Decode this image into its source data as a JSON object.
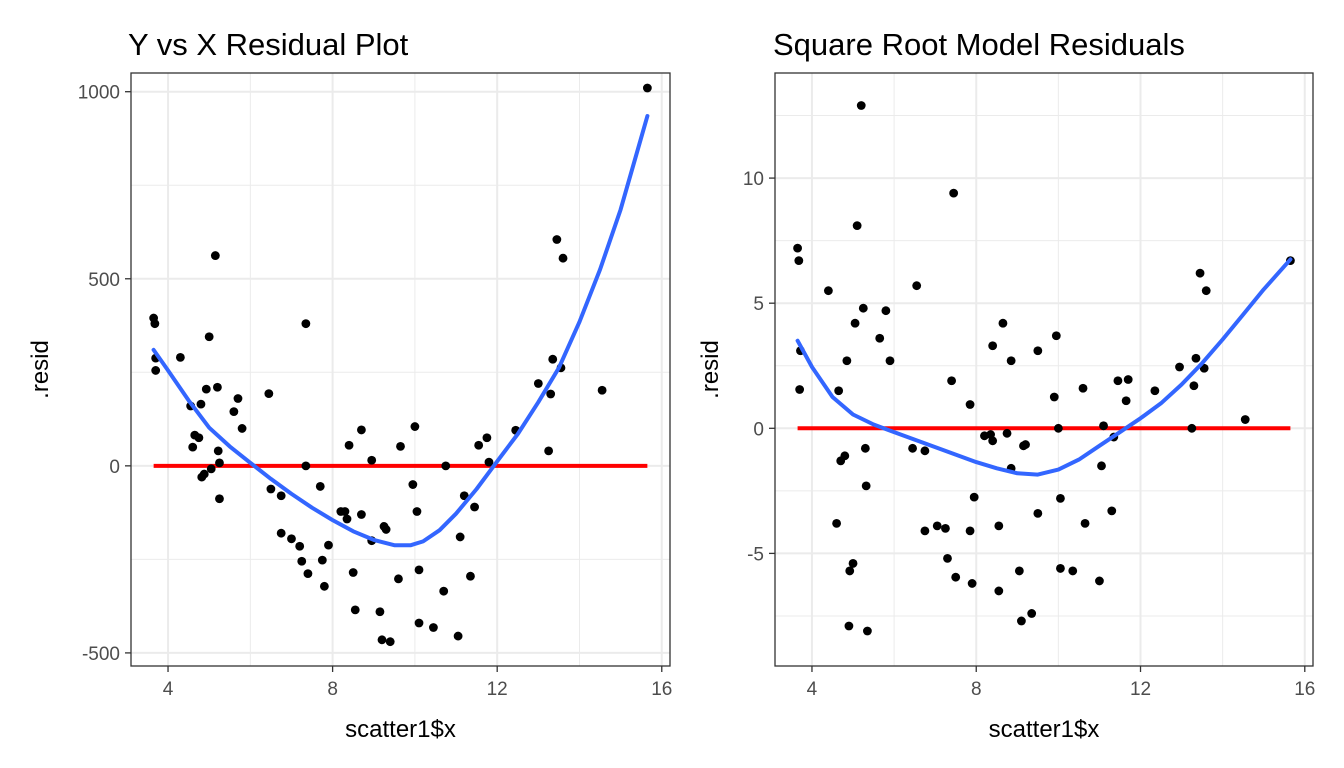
{
  "chart_data": [
    {
      "type": "scatter",
      "title": "Y vs X Residual Plot",
      "xlabel": "scatter1$x",
      "ylabel": ".resid",
      "xlim": [
        3.1,
        16.2
      ],
      "ylim": [
        -535,
        1050
      ],
      "xticks": [
        4,
        8,
        12,
        16
      ],
      "yticks": [
        -500,
        0,
        500,
        1000
      ],
      "grid": true,
      "colors": {
        "points": "#000000",
        "smooth": "#3366ff",
        "reference": "#ff0000",
        "grid": "#ebebeb",
        "border": "#333333"
      },
      "points": [
        [
          3.65,
          395
        ],
        [
          3.68,
          380
        ],
        [
          3.7,
          288
        ],
        [
          3.7,
          255
        ],
        [
          4.3,
          290
        ],
        [
          4.55,
          160
        ],
        [
          4.6,
          50
        ],
        [
          4.65,
          82
        ],
        [
          4.75,
          75
        ],
        [
          4.8,
          165
        ],
        [
          4.82,
          -30
        ],
        [
          4.88,
          -22
        ],
        [
          4.93,
          205
        ],
        [
          5.0,
          345
        ],
        [
          5.05,
          -8
        ],
        [
          5.15,
          562
        ],
        [
          5.2,
          210
        ],
        [
          5.22,
          40
        ],
        [
          5.25,
          8
        ],
        [
          5.25,
          -88
        ],
        [
          5.6,
          145
        ],
        [
          5.7,
          180
        ],
        [
          5.8,
          100
        ],
        [
          6.45,
          193
        ],
        [
          6.5,
          -62
        ],
        [
          6.75,
          -80
        ],
        [
          6.75,
          -180
        ],
        [
          7.0,
          -195
        ],
        [
          7.2,
          -215
        ],
        [
          7.25,
          -255
        ],
        [
          7.35,
          0
        ],
        [
          7.35,
          380
        ],
        [
          7.4,
          -288
        ],
        [
          7.7,
          -55
        ],
        [
          7.75,
          -252
        ],
        [
          7.8,
          -322
        ],
        [
          7.9,
          -212
        ],
        [
          8.2,
          -122
        ],
        [
          8.3,
          -122
        ],
        [
          8.35,
          -142
        ],
        [
          8.4,
          55
        ],
        [
          8.5,
          -285
        ],
        [
          8.55,
          -385
        ],
        [
          8.7,
          96
        ],
        [
          8.7,
          -130
        ],
        [
          8.95,
          -200
        ],
        [
          8.95,
          15
        ],
        [
          9.15,
          -390
        ],
        [
          9.2,
          -465
        ],
        [
          9.25,
          -162
        ],
        [
          9.3,
          -170
        ],
        [
          9.4,
          -470
        ],
        [
          9.6,
          -302
        ],
        [
          9.65,
          52
        ],
        [
          9.95,
          -50
        ],
        [
          10.0,
          105
        ],
        [
          10.05,
          -122
        ],
        [
          10.1,
          -278
        ],
        [
          10.1,
          -420
        ],
        [
          10.45,
          -432
        ],
        [
          10.7,
          -335
        ],
        [
          10.75,
          0
        ],
        [
          11.05,
          -455
        ],
        [
          11.1,
          -190
        ],
        [
          11.2,
          -80
        ],
        [
          11.35,
          -295
        ],
        [
          11.45,
          -110
        ],
        [
          11.55,
          55
        ],
        [
          11.75,
          75
        ],
        [
          11.8,
          10
        ],
        [
          12.45,
          95
        ],
        [
          13.0,
          220
        ],
        [
          13.25,
          40
        ],
        [
          13.3,
          192
        ],
        [
          13.35,
          285
        ],
        [
          13.45,
          605
        ],
        [
          13.55,
          262
        ],
        [
          13.6,
          555
        ],
        [
          14.55,
          202
        ],
        [
          15.65,
          1010
        ]
      ],
      "smooth": [
        [
          3.65,
          310
        ],
        [
          4.0,
          255
        ],
        [
          4.5,
          175
        ],
        [
          5.0,
          102
        ],
        [
          5.5,
          52
        ],
        [
          6.0,
          8
        ],
        [
          6.5,
          -35
        ],
        [
          7.0,
          -75
        ],
        [
          7.5,
          -112
        ],
        [
          8.0,
          -145
        ],
        [
          8.5,
          -175
        ],
        [
          9.0,
          -198
        ],
        [
          9.5,
          -212
        ],
        [
          9.9,
          -212
        ],
        [
          10.2,
          -202
        ],
        [
          10.6,
          -172
        ],
        [
          11.0,
          -128
        ],
        [
          11.5,
          -62
        ],
        [
          12.0,
          12
        ],
        [
          12.5,
          85
        ],
        [
          13.0,
          170
        ],
        [
          13.5,
          262
        ],
        [
          14.0,
          385
        ],
        [
          14.5,
          525
        ],
        [
          15.0,
          685
        ],
        [
          15.65,
          935
        ]
      ],
      "reference": [
        [
          3.65,
          0
        ],
        [
          15.65,
          0
        ]
      ]
    },
    {
      "type": "scatter",
      "title": "Square Root Model Residuals",
      "xlabel": "scatter1$x",
      "ylabel": ".resid",
      "xlim": [
        3.1,
        16.2
      ],
      "ylim": [
        -9.5,
        14.2
      ],
      "xticks": [
        4,
        8,
        12,
        16
      ],
      "yticks": [
        -5,
        0,
        5,
        10
      ],
      "grid": true,
      "colors": {
        "points": "#000000",
        "smooth": "#3366ff",
        "reference": "#ff0000",
        "grid": "#ebebeb",
        "border": "#333333"
      },
      "points": [
        [
          3.65,
          7.2
        ],
        [
          3.68,
          6.7
        ],
        [
          3.72,
          3.1
        ],
        [
          3.7,
          1.55
        ],
        [
          4.4,
          5.5
        ],
        [
          4.6,
          -3.8
        ],
        [
          4.65,
          1.5
        ],
        [
          4.7,
          -1.3
        ],
        [
          4.8,
          -1.1
        ],
        [
          4.85,
          2.7
        ],
        [
          4.9,
          -7.9
        ],
        [
          4.92,
          -5.7
        ],
        [
          5.0,
          -5.4
        ],
        [
          5.05,
          4.2
        ],
        [
          5.1,
          8.1
        ],
        [
          5.2,
          12.9
        ],
        [
          5.25,
          4.8
        ],
        [
          5.3,
          -0.8
        ],
        [
          5.32,
          -2.3
        ],
        [
          5.35,
          -8.1
        ],
        [
          5.65,
          3.6
        ],
        [
          5.8,
          4.7
        ],
        [
          5.9,
          2.7
        ],
        [
          6.45,
          -0.8
        ],
        [
          6.55,
          5.7
        ],
        [
          6.75,
          -0.9
        ],
        [
          6.75,
          -4.1
        ],
        [
          7.05,
          -3.9
        ],
        [
          7.25,
          -4.0
        ],
        [
          7.3,
          -5.2
        ],
        [
          7.4,
          1.9
        ],
        [
          7.45,
          9.4
        ],
        [
          7.5,
          -5.95
        ],
        [
          7.85,
          0.95
        ],
        [
          7.85,
          -4.1
        ],
        [
          7.9,
          -6.2
        ],
        [
          7.95,
          -2.75
        ],
        [
          8.2,
          -0.3
        ],
        [
          8.35,
          -0.25
        ],
        [
          8.4,
          -0.5
        ],
        [
          8.4,
          3.3
        ],
        [
          8.55,
          -3.9
        ],
        [
          8.55,
          -6.5
        ],
        [
          8.65,
          4.2
        ],
        [
          8.75,
          -0.2
        ],
        [
          8.85,
          -1.6
        ],
        [
          8.85,
          2.7
        ],
        [
          9.05,
          -5.7
        ],
        [
          9.1,
          -7.7
        ],
        [
          9.15,
          -0.7
        ],
        [
          9.2,
          -0.65
        ],
        [
          9.35,
          -7.4
        ],
        [
          9.5,
          -3.4
        ],
        [
          9.5,
          3.1
        ],
        [
          9.9,
          1.25
        ],
        [
          9.95,
          3.7
        ],
        [
          10.0,
          0.0
        ],
        [
          10.05,
          -2.8
        ],
        [
          10.05,
          -5.6
        ],
        [
          10.35,
          -5.7
        ],
        [
          10.6,
          1.6
        ],
        [
          10.65,
          -3.8
        ],
        [
          11.0,
          -6.1
        ],
        [
          11.05,
          -1.5
        ],
        [
          11.1,
          0.1
        ],
        [
          11.3,
          -3.3
        ],
        [
          11.35,
          -0.35
        ],
        [
          11.45,
          1.9
        ],
        [
          11.65,
          1.1
        ],
        [
          11.7,
          1.95
        ],
        [
          12.35,
          1.5
        ],
        [
          12.95,
          2.45
        ],
        [
          13.25,
          0.0
        ],
        [
          13.3,
          1.7
        ],
        [
          13.35,
          2.8
        ],
        [
          13.45,
          6.2
        ],
        [
          13.55,
          2.4
        ],
        [
          13.6,
          5.5
        ],
        [
          14.55,
          0.35
        ],
        [
          15.65,
          6.7
        ]
      ],
      "smooth": [
        [
          3.65,
          3.5
        ],
        [
          4.0,
          2.45
        ],
        [
          4.5,
          1.25
        ],
        [
          5.0,
          0.55
        ],
        [
          5.5,
          0.15
        ],
        [
          6.0,
          -0.15
        ],
        [
          6.5,
          -0.45
        ],
        [
          7.0,
          -0.75
        ],
        [
          7.5,
          -1.05
        ],
        [
          8.0,
          -1.35
        ],
        [
          8.5,
          -1.6
        ],
        [
          9.0,
          -1.8
        ],
        [
          9.5,
          -1.85
        ],
        [
          10.0,
          -1.65
        ],
        [
          10.5,
          -1.25
        ],
        [
          11.0,
          -0.7
        ],
        [
          11.5,
          -0.15
        ],
        [
          12.0,
          0.4
        ],
        [
          12.5,
          1.0
        ],
        [
          13.0,
          1.75
        ],
        [
          13.5,
          2.6
        ],
        [
          14.0,
          3.55
        ],
        [
          14.5,
          4.55
        ],
        [
          15.0,
          5.55
        ],
        [
          15.65,
          6.75
        ]
      ],
      "reference": [
        [
          3.65,
          0
        ],
        [
          15.65,
          0
        ]
      ]
    }
  ]
}
